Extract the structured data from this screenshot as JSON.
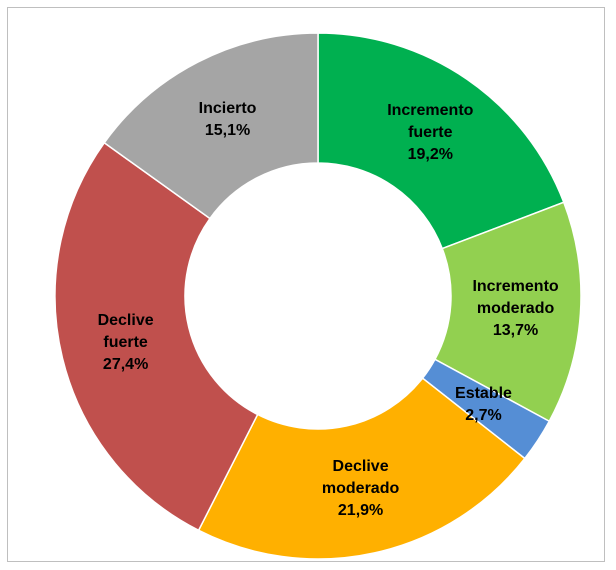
{
  "chart_data": {
    "type": "donut",
    "categories": [
      "Incremento fuerte",
      "Incremento moderado",
      "Estable",
      "Declive moderado",
      "Declive fuerte",
      "Incierto"
    ],
    "values": [
      19.2,
      13.7,
      2.7,
      21.9,
      27.4,
      15.1
    ],
    "value_labels": [
      "19,2%",
      "13,7%",
      "2,7%",
      "21,9%",
      "27,4%",
      "15,1%"
    ],
    "colors": [
      "#00b050",
      "#92d050",
      "#558ed5",
      "#ffb000",
      "#c0504d",
      "#a5a5a5"
    ]
  }
}
